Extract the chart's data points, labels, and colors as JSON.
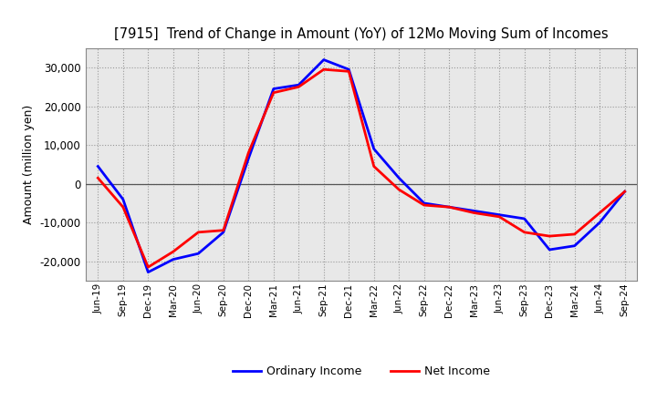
{
  "title": "[7915]  Trend of Change in Amount (YoY) of 12Mo Moving Sum of Incomes",
  "ylabel": "Amount (million yen)",
  "background_color": "#ffffff",
  "plot_bg_color": "#e8e8e8",
  "grid_color": "#999999",
  "ordinary_income_color": "#0000ff",
  "net_income_color": "#ff0000",
  "line_width": 2.0,
  "labels": [
    "Jun-19",
    "Sep-19",
    "Dec-19",
    "Mar-20",
    "Jun-20",
    "Sep-20",
    "Dec-20",
    "Mar-21",
    "Jun-21",
    "Sep-21",
    "Dec-21",
    "Mar-22",
    "Jun-22",
    "Sep-22",
    "Dec-22",
    "Mar-23",
    "Jun-23",
    "Sep-23",
    "Dec-23",
    "Mar-24",
    "Jun-24",
    "Sep-24"
  ],
  "ordinary_income": [
    4500,
    -4000,
    -22800,
    -19500,
    -18000,
    -12500,
    6500,
    24500,
    25500,
    32000,
    29500,
    9000,
    1500,
    -5000,
    -6000,
    -7000,
    -8000,
    -9000,
    -17000,
    -16000,
    -10000,
    -2000
  ],
  "net_income": [
    1500,
    -6000,
    -21500,
    -17500,
    -12500,
    -12000,
    8000,
    23500,
    25000,
    29500,
    29000,
    4500,
    -1500,
    -5500,
    -6000,
    -7500,
    -8500,
    -12500,
    -13500,
    -13000,
    -7500,
    -2000
  ],
  "ylim": [
    -25000,
    35000
  ],
  "yticks": [
    -20000,
    -10000,
    0,
    10000,
    20000,
    30000
  ]
}
